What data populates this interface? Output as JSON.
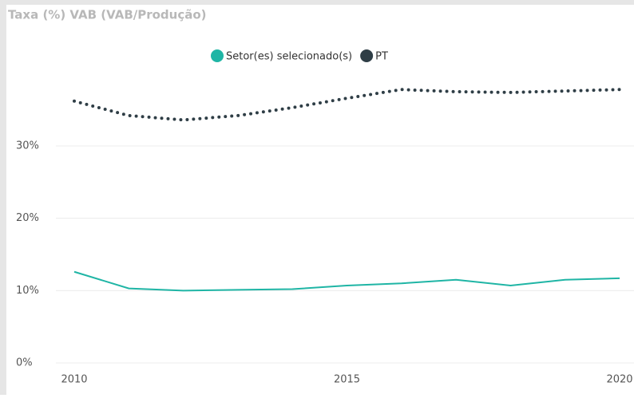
{
  "chart_data": {
    "type": "line",
    "title": "Taxa (%) VAB (VAB/Produção)",
    "x": [
      2010,
      2011,
      2012,
      2013,
      2014,
      2015,
      2016,
      2017,
      2018,
      2019,
      2020
    ],
    "series": [
      {
        "name": "Setor(es) selecionado(s)",
        "color": "#1fb5a5",
        "line_style": "solid",
        "values": [
          12.6,
          10.3,
          10.0,
          10.1,
          10.2,
          10.7,
          11.0,
          11.5,
          10.7,
          11.5,
          11.7
        ]
      },
      {
        "name": "PT",
        "color": "#2f3e46",
        "line_style": "dotted",
        "values": [
          36.2,
          34.2,
          33.6,
          34.2,
          35.3,
          36.6,
          37.8,
          37.5,
          37.4,
          37.6,
          37.8
        ]
      }
    ],
    "xlim": [
      2010,
      2020
    ],
    "xticks": [
      2010,
      2015,
      2020
    ],
    "ylim": [
      0,
      45
    ],
    "yticks": [
      {
        "value": 0,
        "label": "0%"
      },
      {
        "value": 10,
        "label": "10%"
      },
      {
        "value": 20,
        "label": "20%"
      },
      {
        "value": 30,
        "label": "30%"
      }
    ],
    "grid": true,
    "legend": "top"
  }
}
